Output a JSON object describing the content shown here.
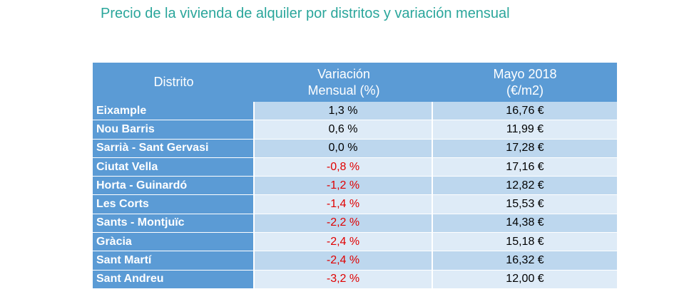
{
  "title": "Precio de la vivienda de alquiler por distritos y variación mensual",
  "colors": {
    "title": "#2aa69b",
    "header": "#5b9bd5",
    "row_dark": "#bdd7ee",
    "row_light": "#deebf7",
    "negative": "#e00000"
  },
  "table": {
    "headers": {
      "district": "Distrito",
      "variation_line1": "Variación",
      "variation_line2": "Mensual (%)",
      "price_line1": "Mayo 2018",
      "price_line2": "(€/m2)"
    },
    "rows": [
      {
        "district": "Eixample",
        "variation": "1,3 %",
        "price": "16,76 €",
        "negative": false
      },
      {
        "district": "Nou Barris",
        "variation": "0,6 %",
        "price": "11,99 €",
        "negative": false
      },
      {
        "district": "Sarrià - Sant Gervasi",
        "variation": "0,0 %",
        "price": "17,28 €",
        "negative": false
      },
      {
        "district": "Ciutat Vella",
        "variation": "-0,8 %",
        "price": "17,16 €",
        "negative": true
      },
      {
        "district": "Horta - Guinardó",
        "variation": "-1,2 %",
        "price": "12,82 €",
        "negative": true
      },
      {
        "district": "Les Corts",
        "variation": "-1,4 %",
        "price": "15,53 €",
        "negative": true
      },
      {
        "district": "Sants - Montjuïc",
        "variation": "-2,2 %",
        "price": "14,38 €",
        "negative": true
      },
      {
        "district": "Gràcia",
        "variation": "-2,4 %",
        "price": "15,18 €",
        "negative": true
      },
      {
        "district": "Sant Martí",
        "variation": "-2,4 %",
        "price": "16,32 €",
        "negative": true
      },
      {
        "district": "Sant Andreu",
        "variation": "-3,2 %",
        "price": "12,00 €",
        "negative": true
      }
    ]
  }
}
